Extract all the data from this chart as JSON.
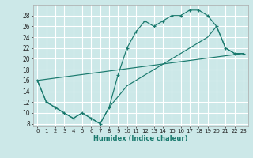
{
  "xlabel": "Humidex (Indice chaleur)",
  "line_color": "#1a7a6e",
  "bg_color": "#cce8e8",
  "grid_color": "#ffffff",
  "xlim": [
    -0.5,
    23.5
  ],
  "ylim": [
    7.5,
    30.0
  ],
  "yticks": [
    8,
    10,
    12,
    14,
    16,
    18,
    20,
    22,
    24,
    26,
    28
  ],
  "xticks": [
    0,
    1,
    2,
    3,
    4,
    5,
    6,
    7,
    8,
    9,
    10,
    11,
    12,
    13,
    14,
    15,
    16,
    17,
    18,
    19,
    20,
    21,
    22,
    23
  ],
  "line1_x": [
    0,
    1,
    2,
    3,
    4,
    5,
    6,
    7,
    8,
    9,
    10,
    11,
    12,
    13,
    14,
    15,
    16,
    17,
    18,
    19,
    20,
    21,
    22,
    23
  ],
  "line1_y": [
    16,
    12,
    11,
    10,
    9,
    10,
    9,
    8,
    11,
    17,
    22,
    25,
    27,
    26,
    27,
    28,
    28,
    29,
    29,
    28,
    26,
    22,
    21,
    21
  ],
  "line2_x": [
    0,
    1,
    2,
    3,
    4,
    5,
    6,
    7,
    8,
    9,
    10,
    11,
    12,
    13,
    14,
    15,
    16,
    17,
    18,
    19,
    20,
    21,
    22,
    23
  ],
  "line2_y": [
    16,
    12,
    11,
    10,
    9,
    10,
    9,
    8,
    11,
    13,
    15,
    16,
    17,
    18,
    19,
    20,
    21,
    22,
    23,
    24,
    26,
    22,
    21,
    21
  ],
  "line3_x": [
    0,
    23
  ],
  "line3_y": [
    16,
    21
  ]
}
